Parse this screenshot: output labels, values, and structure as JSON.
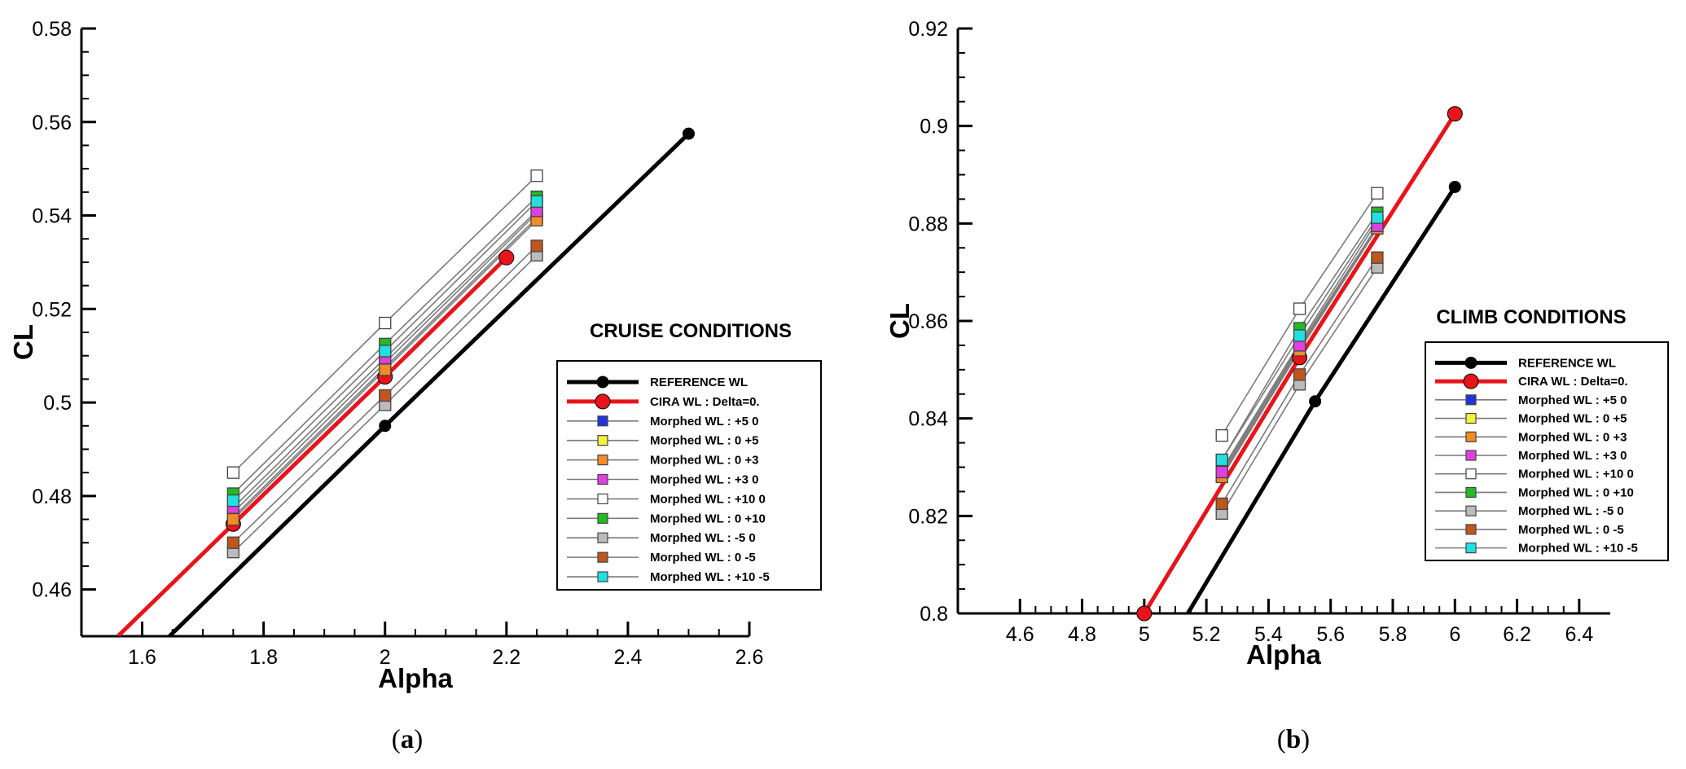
{
  "chart_data": [
    {
      "type": "line",
      "panel_label": "a",
      "title": "CRUISE CONDITIONS",
      "xlabel": "Alpha",
      "ylabel": "CL",
      "ylabel_sub": "L",
      "xlim": [
        1.5,
        2.6
      ],
      "ylim": [
        0.45,
        0.58
      ],
      "xticks": [
        1.6,
        1.8,
        2,
        2.2,
        2.4,
        2.6
      ],
      "xtick_labels": [
        "1.6",
        "1.8",
        "2",
        "2.2",
        "2.4",
        "2.6"
      ],
      "yticks": [
        0.46,
        0.48,
        0.5,
        0.52,
        0.54,
        0.56,
        0.58
      ],
      "ytick_labels": [
        "0.46",
        "0.48",
        "0.5",
        "0.52",
        "0.54",
        "0.56",
        "0.58"
      ],
      "legend_position": "right",
      "series": [
        {
          "name": "REFERENCE WL",
          "color": "#000000",
          "marker": "circle",
          "style": "thick",
          "x": [
            1.645,
            2.0,
            2.5
          ],
          "y": [
            0.45,
            0.495,
            0.5575
          ],
          "marker_x": [
            2.0,
            2.5
          ],
          "marker_y": [
            0.495,
            0.5575
          ]
        },
        {
          "name": "CIRA WL : Delta=0.",
          "color": "#e8141c",
          "marker": "circle",
          "style": "thick",
          "x": [
            1.56,
            1.75,
            2.0,
            2.2
          ],
          "y": [
            0.45,
            0.474,
            0.5055,
            0.531
          ],
          "marker_x": [
            1.75,
            2.0,
            2.2
          ],
          "marker_y": [
            0.474,
            0.5055,
            0.531
          ]
        },
        {
          "name": "Morphed WL : +5  0",
          "color": "#2233dd",
          "marker": "square",
          "style": "thin",
          "x": [
            1.75,
            2.0,
            2.25
          ],
          "y": [
            0.4765,
            0.5085,
            0.5405
          ]
        },
        {
          "name": "Morphed WL : 0  +5",
          "color": "#f2f23c",
          "marker": "square",
          "style": "thin",
          "x": [
            1.75,
            2.0,
            2.25
          ],
          "y": [
            0.4755,
            0.5075,
            0.5395
          ]
        },
        {
          "name": "Morphed WL : 0  +3",
          "color": "#f28c28",
          "marker": "square",
          "style": "thin",
          "x": [
            1.75,
            2.0,
            2.25
          ],
          "y": [
            0.475,
            0.507,
            0.539
          ]
        },
        {
          "name": "Morphed WL : +3  0",
          "color": "#e040e0",
          "marker": "square",
          "style": "thin",
          "x": [
            1.75,
            2.0,
            2.25
          ],
          "y": [
            0.4775,
            0.5095,
            0.541
          ]
        },
        {
          "name": "Morphed WL : +10  0",
          "color": "#ffffff",
          "marker": "square",
          "style": "thin",
          "x": [
            1.75,
            2.0,
            2.25
          ],
          "y": [
            0.485,
            0.517,
            0.5485
          ]
        },
        {
          "name": "Morphed WL : 0  +10",
          "color": "#22bb22",
          "marker": "square",
          "style": "thin",
          "x": [
            1.75,
            2.0,
            2.25
          ],
          "y": [
            0.4805,
            0.5125,
            0.544
          ]
        },
        {
          "name": "Morphed WL : -5  0",
          "color": "#bbbbbb",
          "marker": "square",
          "style": "thin",
          "x": [
            1.75,
            2.0,
            2.25
          ],
          "y": [
            0.468,
            0.4995,
            0.5315
          ]
        },
        {
          "name": "Morphed WL : 0  -5",
          "color": "#c0561e",
          "marker": "square",
          "style": "thin",
          "x": [
            1.75,
            2.0,
            2.25
          ],
          "y": [
            0.47,
            0.5015,
            0.5335
          ]
        },
        {
          "name": "Morphed WL : +10 -5",
          "color": "#22e0e0",
          "marker": "square",
          "style": "thin",
          "x": [
            1.75,
            2.0,
            2.25
          ],
          "y": [
            0.479,
            0.511,
            0.543
          ]
        }
      ]
    },
    {
      "type": "line",
      "panel_label": "b",
      "title": "CLIMB CONDITIONS",
      "xlabel": "Alpha",
      "ylabel": "CL",
      "ylabel_sub": "L",
      "xlim": [
        4.4,
        6.5
      ],
      "ylim": [
        0.8,
        0.92
      ],
      "xticks": [
        4.6,
        4.8,
        5,
        5.2,
        5.4,
        5.6,
        5.8,
        6,
        6.2,
        6.4
      ],
      "xtick_labels": [
        "4.6",
        "4.8",
        "5",
        "5.2",
        "5.4",
        "5.6",
        "5.8",
        "6",
        "6.2",
        "6.4"
      ],
      "yticks": [
        0.8,
        0.82,
        0.84,
        0.86,
        0.88,
        0.9,
        0.92
      ],
      "ytick_labels": [
        "0.8",
        "0.82",
        "0.84",
        "0.86",
        "0.88",
        "0.9",
        "0.92"
      ],
      "legend_position": "right",
      "series": [
        {
          "name": "REFERENCE WL",
          "color": "#000000",
          "marker": "circle",
          "style": "thick",
          "x": [
            5.14,
            5.55,
            6.0
          ],
          "y": [
            0.8,
            0.8435,
            0.8875
          ],
          "marker_x": [
            5.55,
            6.0
          ],
          "marker_y": [
            0.8435,
            0.8875
          ]
        },
        {
          "name": "CIRA WL : Delta=0.",
          "color": "#e8141c",
          "marker": "circle",
          "style": "thick",
          "x": [
            5.0,
            5.5,
            6.0
          ],
          "y": [
            0.8,
            0.8525,
            0.9025
          ],
          "marker_x": [
            5.0,
            5.5,
            6.0
          ],
          "marker_y": [
            0.8,
            0.8525,
            0.9025
          ]
        },
        {
          "name": "Morphed WL : +5  0",
          "color": "#2233dd",
          "marker": "square",
          "style": "thin",
          "x": [
            5.25,
            5.5,
            5.75
          ],
          "y": [
            0.8295,
            0.8555,
            0.8805
          ]
        },
        {
          "name": "Morphed WL : 0  +5",
          "color": "#f2f23c",
          "marker": "square",
          "style": "thin",
          "x": [
            5.25,
            5.5,
            5.75
          ],
          "y": [
            0.8285,
            0.8545,
            0.8795
          ]
        },
        {
          "name": "Morphed WL : 0  +3",
          "color": "#f28c28",
          "marker": "square",
          "style": "thin",
          "x": [
            5.25,
            5.5,
            5.75
          ],
          "y": [
            0.828,
            0.854,
            0.879
          ]
        },
        {
          "name": "Morphed WL : +3  0",
          "color": "#e040e0",
          "marker": "square",
          "style": "thin",
          "x": [
            5.25,
            5.5,
            5.75
          ],
          "y": [
            0.829,
            0.855,
            0.8795
          ]
        },
        {
          "name": "Morphed WL : +10  0",
          "color": "#ffffff",
          "marker": "square",
          "style": "thin",
          "x": [
            5.25,
            5.5,
            5.75
          ],
          "y": [
            0.8365,
            0.8625,
            0.8862
          ]
        },
        {
          "name": "Morphed WL : 0  +10",
          "color": "#22bb22",
          "marker": "square",
          "style": "thin",
          "x": [
            5.25,
            5.5,
            5.75
          ],
          "y": [
            0.8315,
            0.8585,
            0.8822
          ]
        },
        {
          "name": "Morphed WL : -5  0",
          "color": "#bbbbbb",
          "marker": "square",
          "style": "thin",
          "x": [
            5.25,
            5.5,
            5.75
          ],
          "y": [
            0.8205,
            0.847,
            0.871
          ]
        },
        {
          "name": "Morphed WL : 0  -5",
          "color": "#c0561e",
          "marker": "square",
          "style": "thin",
          "x": [
            5.25,
            5.5,
            5.75
          ],
          "y": [
            0.8225,
            0.849,
            0.873
          ]
        },
        {
          "name": "Morphed WL : +10 -5",
          "color": "#22e0e0",
          "marker": "square",
          "style": "thin",
          "x": [
            5.25,
            5.5,
            5.75
          ],
          "y": [
            0.8315,
            0.857,
            0.8812
          ]
        }
      ]
    }
  ]
}
